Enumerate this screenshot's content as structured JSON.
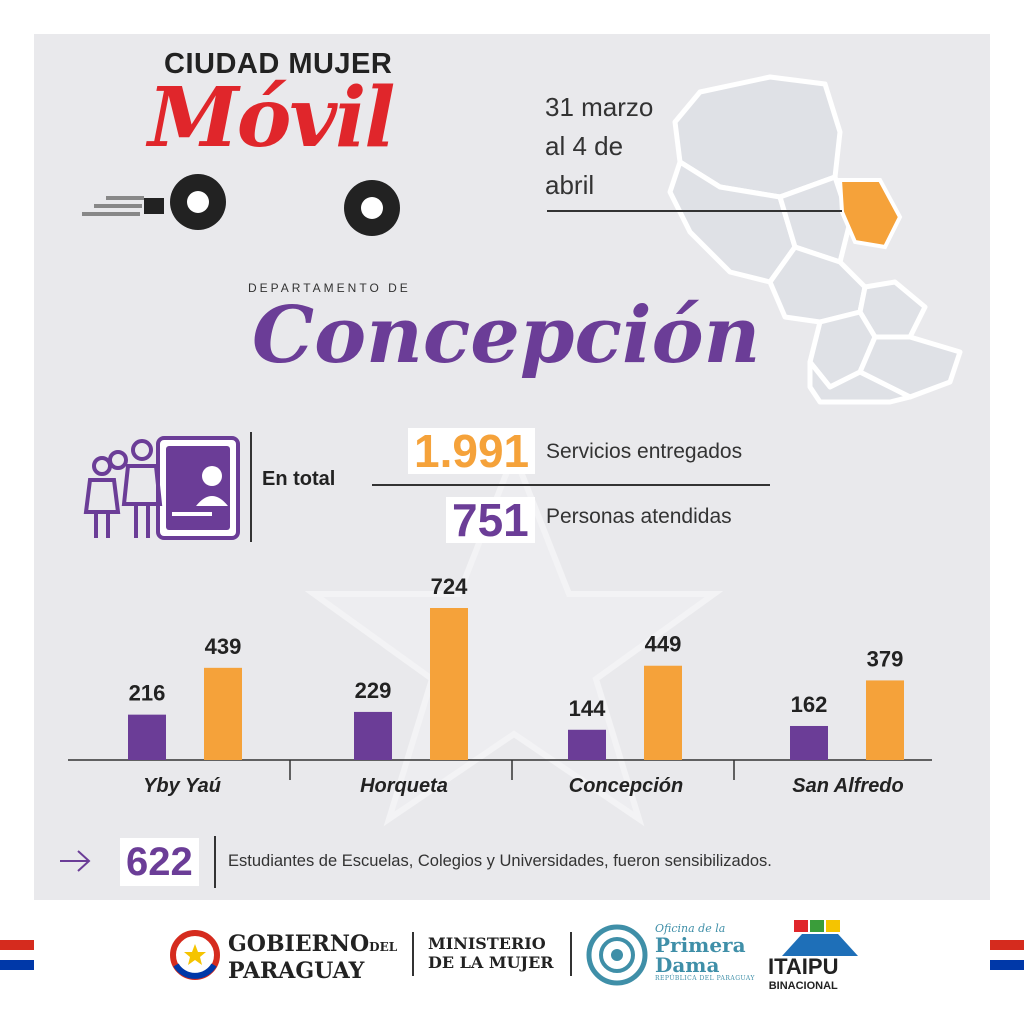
{
  "header": {
    "brand_top": "CIUDAD MUJER",
    "brand_script": "Móvil",
    "date_lines": [
      "31 marzo",
      "al 4 de",
      "abril"
    ]
  },
  "department": {
    "prefix": "DEPARTAMENTO DE",
    "name": "Concepción"
  },
  "totals": {
    "label": "En total",
    "services_value": "1.991",
    "services_label": "Servicios entregados",
    "people_value": "751",
    "people_label": "Personas atendidas"
  },
  "chart_data": {
    "type": "bar",
    "categories": [
      "Yby Yaú",
      "Horqueta",
      "Concepción",
      "San Alfredo"
    ],
    "series": [
      {
        "values": [
          216,
          229,
          144,
          162
        ],
        "color": "#6b3d97"
      },
      {
        "values": [
          439,
          724,
          449,
          379
        ],
        "color": "#f5a23a"
      }
    ],
    "ylim": [
      0,
      724
    ],
    "grid": false,
    "legend": "none"
  },
  "students": {
    "value": "622",
    "text": "Estudiantes de Escuelas, Colegios y Universidades, fueron sensibilizados."
  },
  "footer": {
    "gob_line1": "GOBIERNO",
    "gob_del": "DEL",
    "gob_line2": "PARAGUAY",
    "ministerio_line1": "MINISTERIO",
    "ministerio_line2": "DE LA MUJER",
    "primera_small": "Oficina de la",
    "primera_line1": "Primera",
    "primera_line2": "Dama",
    "primera_tiny": "REPÚBLICA DEL PARAGUAY",
    "itaipu": "ITAIPU",
    "itaipu_sub": "BINACIONAL"
  },
  "colors": {
    "purple": "#6b3d97",
    "orange": "#f5a23a",
    "red": "#e0262b",
    "panel": "#e9e9ec"
  },
  "icons": [
    "car-wheel-icon",
    "women-group-icon",
    "id-card-icon",
    "arrow-right-icon",
    "paraguay-map-icon"
  ]
}
